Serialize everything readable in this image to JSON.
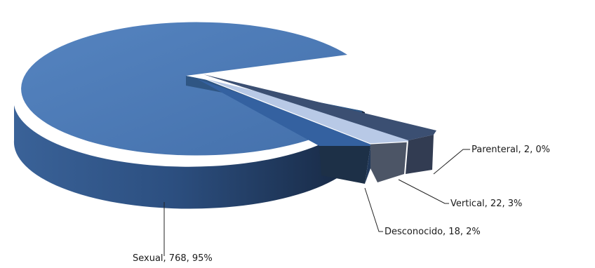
{
  "chart_data": {
    "type": "pie",
    "style": "3d-exploded",
    "title": "",
    "slices": [
      {
        "label": "Sexual",
        "value": 768,
        "percent": "95%",
        "text": "Sexual, 768, 95%",
        "color": "#4a78b5"
      },
      {
        "label": "Desconocido",
        "value": 18,
        "percent": "2%",
        "text": "Desconocido, 18, 2%",
        "color": "#2f5a8f"
      },
      {
        "label": "Vertical",
        "value": 22,
        "percent": "3%",
        "text": "Vertical, 22, 3%",
        "color": "#b8c9e6"
      },
      {
        "label": "Parenteral",
        "value": 2,
        "percent": "0%",
        "text": "Parenteral, 2, 0%",
        "color": "#3b4f72"
      }
    ],
    "legend": "none",
    "data_labels": "outside-with-leader-lines"
  }
}
